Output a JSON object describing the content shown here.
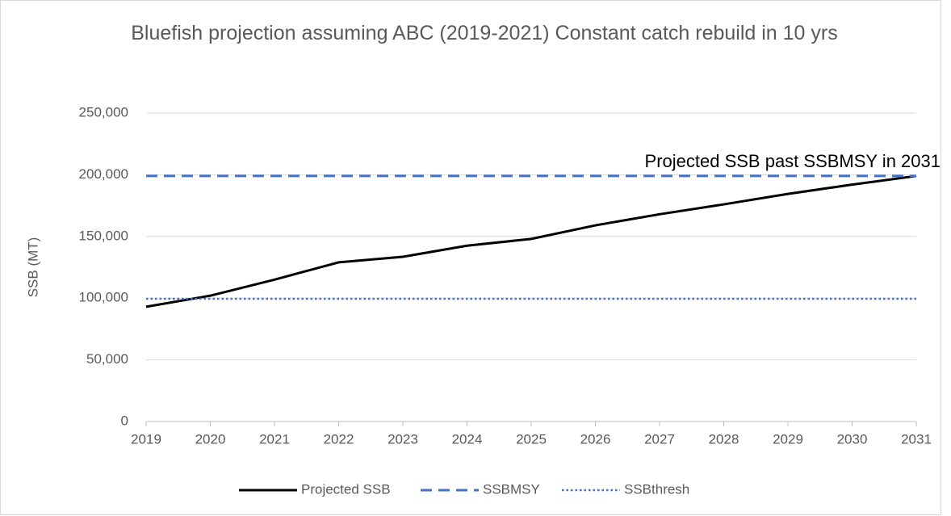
{
  "chart_data": {
    "type": "line",
    "title": "Bluefish projection assuming ABC (2019-2021) Constant catch rebuild in 10 yrs",
    "y_label": "SSB (MT)",
    "annotation": "Projected SSB past SSBMSY in 2031",
    "categories": [
      "2019",
      "2020",
      "2021",
      "2022",
      "2023",
      "2024",
      "2025",
      "2026",
      "2027",
      "2028",
      "2029",
      "2030",
      "2031"
    ],
    "series": [
      {
        "name": "Projected SSB",
        "color": "#000000",
        "dash": "solid",
        "values": [
          93000,
          102000,
          115000,
          129000,
          133500,
          142500,
          148000,
          159000,
          168000,
          176000,
          184500,
          192000,
          199000
        ]
      },
      {
        "name": "SSBMSY",
        "color": "#4472c4",
        "dash": "dashed",
        "values": [
          199000,
          199000,
          199000,
          199000,
          199000,
          199000,
          199000,
          199000,
          199000,
          199000,
          199000,
          199000,
          199000
        ]
      },
      {
        "name": "SSBthresh",
        "color": "#4472c4",
        "dash": "dotted",
        "values": [
          99500,
          99500,
          99500,
          99500,
          99500,
          99500,
          99500,
          99500,
          99500,
          99500,
          99500,
          99500,
          99500
        ]
      }
    ],
    "ylim": [
      0,
      250000
    ],
    "yticks": [
      0,
      {
        "value": 50000,
        "label": "50,000"
      },
      {
        "value": 100000,
        "label": "100,000"
      },
      {
        "value": 150000,
        "label": "150,000"
      },
      {
        "value": 200000,
        "label": "200,000"
      },
      {
        "value": 250000,
        "label": "250,000"
      }
    ],
    "grid": true,
    "legend": "bottom"
  }
}
